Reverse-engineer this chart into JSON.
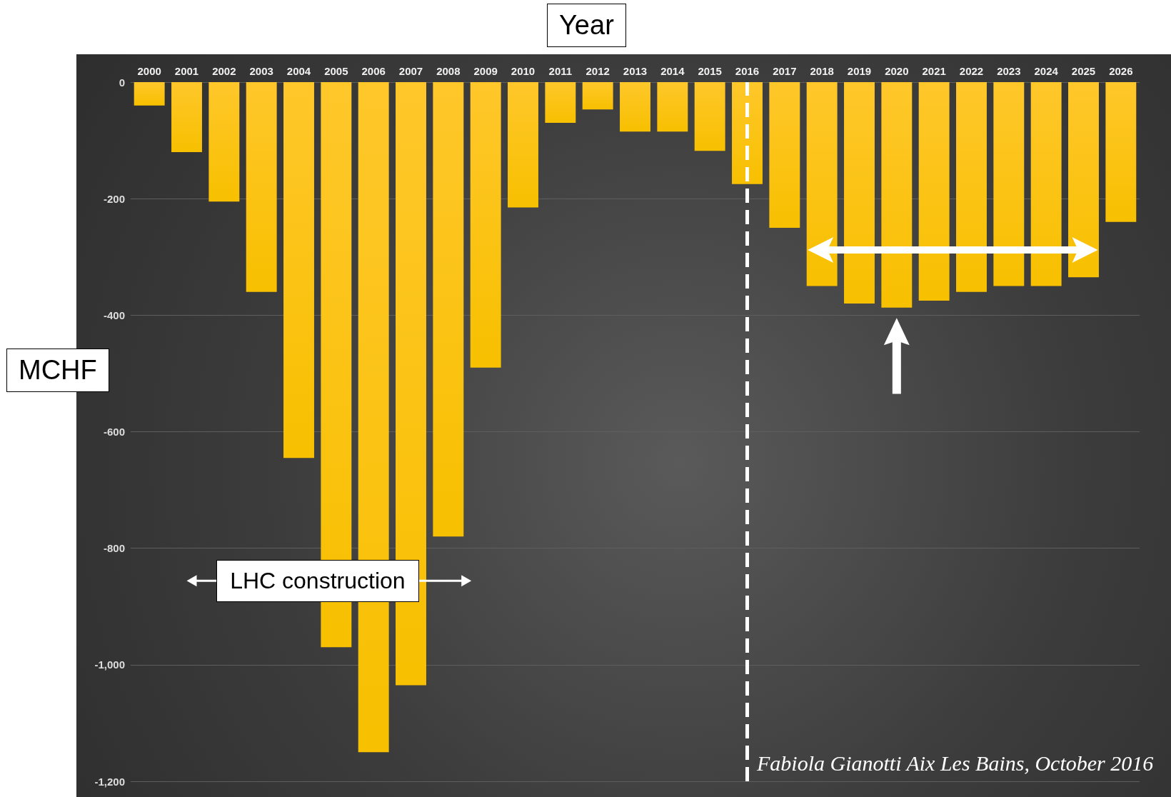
{
  "chart_data": {
    "type": "bar",
    "xlabel": "Year",
    "ylabel": "MCHF",
    "categories": [
      "2000",
      "2001",
      "2002",
      "2003",
      "2004",
      "2005",
      "2006",
      "2007",
      "2008",
      "2009",
      "2010",
      "2011",
      "2012",
      "2013",
      "2014",
      "2015",
      "2016",
      "2017",
      "2018",
      "2019",
      "2020",
      "2021",
      "2022",
      "2023",
      "2024",
      "2025",
      "2026"
    ],
    "values": [
      -40,
      -120,
      -205,
      -360,
      -645,
      -970,
      -1150,
      -1035,
      -780,
      -490,
      -215,
      -70,
      -47,
      -85,
      -85,
      -118,
      -175,
      -250,
      -350,
      -380,
      -387,
      -375,
      -360,
      -350,
      -350,
      -335,
      -240
    ],
    "color": "#f7c000",
    "ylim": [
      -1200,
      0
    ],
    "yticks": [
      {
        "value": -1200,
        "label": "-1,200"
      },
      {
        "value": -1000,
        "label": "-1,000"
      },
      -800,
      -600,
      -400,
      -200,
      0
    ],
    "grid": "y",
    "ref_lines": [
      {
        "axis": "x",
        "value": "2016",
        "color": "#ffffff",
        "line_style": "dashed"
      }
    ],
    "annotations": [
      "LHC construction",
      "Fabiola Gianotti Aix Les Bains, October 2016"
    ]
  }
}
